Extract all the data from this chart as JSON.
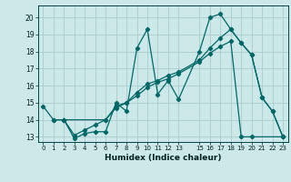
{
  "xlabel": "Humidex (Indice chaleur)",
  "bg_color": "#cce8e8",
  "grid_color": "#aacccc",
  "line_color": "#006666",
  "xlim": [
    -0.5,
    23.5
  ],
  "ylim": [
    12.7,
    20.7
  ],
  "xticks": [
    0,
    1,
    2,
    3,
    4,
    5,
    6,
    7,
    8,
    9,
    10,
    11,
    12,
    13,
    15,
    16,
    17,
    18,
    19,
    20,
    21,
    22,
    23
  ],
  "yticks": [
    13,
    14,
    15,
    16,
    17,
    18,
    19,
    20
  ],
  "line1_x": [
    0,
    1,
    2,
    3,
    4,
    5,
    6,
    7,
    8,
    9,
    10,
    11,
    12,
    13,
    15,
    16,
    17,
    18,
    19,
    20,
    21,
    22,
    23
  ],
  "line1_y": [
    14.8,
    14.0,
    14.0,
    12.9,
    13.2,
    13.3,
    13.3,
    15.0,
    14.5,
    18.2,
    19.3,
    15.5,
    16.3,
    15.2,
    18.0,
    20.0,
    20.2,
    19.3,
    18.5,
    17.8,
    15.3,
    14.5,
    13.0
  ],
  "line2_x": [
    2,
    3,
    4,
    5,
    6,
    7,
    8,
    9,
    10,
    11,
    12,
    13,
    15,
    16,
    17,
    18,
    19,
    20,
    23
  ],
  "line2_y": [
    14.0,
    13.1,
    13.4,
    13.7,
    14.0,
    14.7,
    15.0,
    15.4,
    15.9,
    16.2,
    16.4,
    16.7,
    17.4,
    17.9,
    18.3,
    18.6,
    13.0,
    13.0,
    13.0
  ],
  "line3_x": [
    1,
    2,
    6,
    7,
    8,
    9,
    10,
    11,
    12,
    13,
    15,
    16,
    17,
    18,
    19,
    20,
    21,
    22,
    23
  ],
  "line3_y": [
    14.0,
    14.0,
    14.0,
    14.8,
    15.0,
    15.6,
    16.1,
    16.3,
    16.6,
    16.8,
    17.5,
    18.2,
    18.8,
    19.3,
    18.5,
    17.8,
    15.3,
    14.5,
    13.0
  ]
}
